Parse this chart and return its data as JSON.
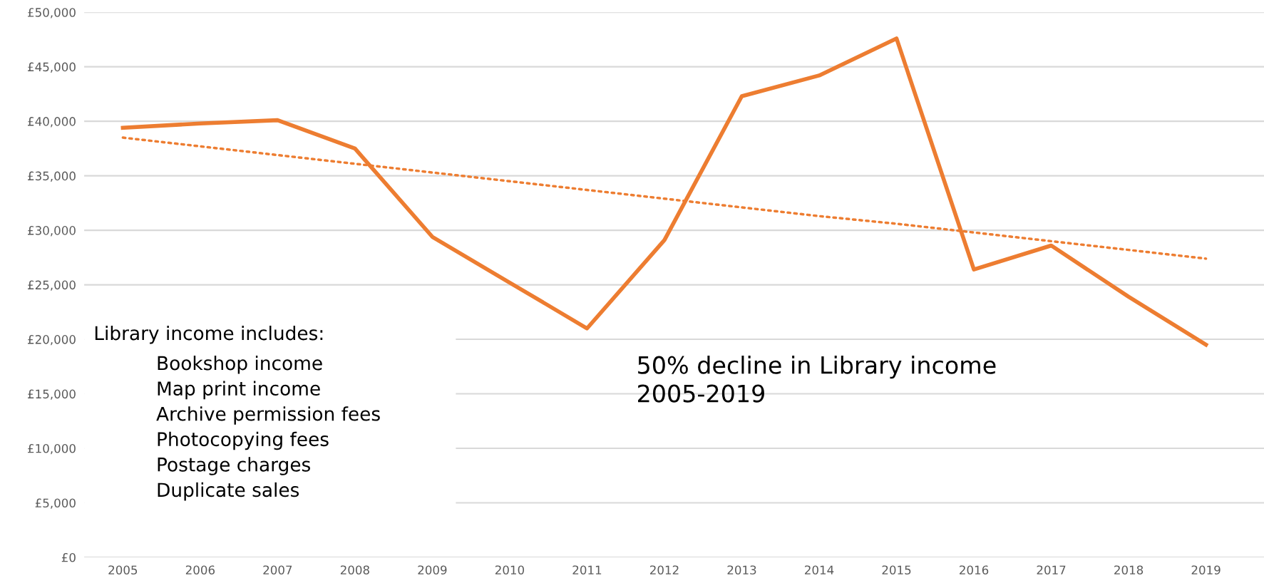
{
  "chart_data": {
    "type": "line",
    "categories": [
      "2005",
      "2006",
      "2007",
      "2008",
      "2009",
      "2010",
      "2011",
      "2012",
      "2013",
      "2014",
      "2015",
      "2016",
      "2017",
      "2018",
      "2019"
    ],
    "series": [
      {
        "color": "#ed7d31",
        "values": [
          39400,
          39800,
          40100,
          37500,
          29400,
          25200,
          21000,
          29100,
          42300,
          44200,
          47600,
          26400,
          28600,
          23900,
          19500
        ]
      },
      {
        "type": "line",
        "color": "#ed7d31",
        "line_style": "dotted",
        "values": [
          38500,
          37700,
          36900,
          36100,
          35300,
          34500,
          33700,
          32900,
          32100,
          31300,
          30600,
          29800,
          29000,
          28200,
          27400
        ]
      }
    ],
    "ylim": [
      0,
      50000
    ],
    "yticks": [
      {
        "value": 0,
        "label": "£0"
      },
      {
        "value": 5000,
        "label": "£5,000"
      },
      {
        "value": 10000,
        "label": "£10,000"
      },
      {
        "value": 15000,
        "label": "£15,000"
      },
      {
        "value": 20000,
        "label": "£20,000"
      },
      {
        "value": 25000,
        "label": "£25,000"
      },
      {
        "value": 30000,
        "label": "£30,000"
      },
      {
        "value": 35000,
        "label": "£35,000"
      },
      {
        "value": 40000,
        "label": "£40,000"
      },
      {
        "value": 45000,
        "label": "£45,000"
      },
      {
        "value": 50000,
        "label": "£50,000"
      }
    ],
    "grid": "y",
    "annotations": [
      "Library income includes:",
      "Bookshop income\nMap print income\nArchive permission fees\nPhotocopying fees\nPostage charges\nDuplicate sales",
      "50% decline in Library income\n2005-2019"
    ]
  }
}
